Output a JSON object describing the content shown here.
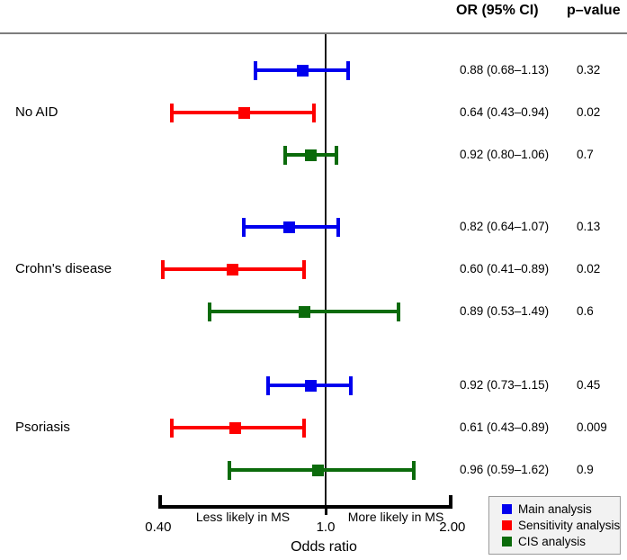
{
  "chart_data": {
    "type": "scatter",
    "variant": "forest-plot",
    "xlabel": "Odds ratio",
    "xscale": "log",
    "xlim": [
      0.4,
      2.0
    ],
    "reference_value": 1.0,
    "grid": false,
    "legend_position": "bottom-right",
    "xticks": [
      {
        "value": 0.4,
        "label": "0.40"
      },
      {
        "value": 1.0,
        "label": "1.0"
      },
      {
        "value": 2.0,
        "label": "2.00"
      }
    ],
    "direction_labels": {
      "left": "Less likely in MS",
      "right": "More likely in MS"
    },
    "columns": {
      "or": "OR (95% CI)",
      "p": "p–value"
    },
    "series": [
      {
        "name": "Main analysis",
        "color": "#0000ee"
      },
      {
        "name": "Sensitivity analysis",
        "color": "#fe0000"
      },
      {
        "name": "CIS analysis",
        "color": "#0b6b0b"
      }
    ],
    "groups": [
      {
        "label": "No AID",
        "rows": [
          {
            "series": "Main analysis",
            "or": 0.88,
            "ci_low": 0.68,
            "ci_high": 1.13,
            "or_text": "0.88 (0.68–1.13)",
            "p": "0.32"
          },
          {
            "series": "Sensitivity analysis",
            "or": 0.64,
            "ci_low": 0.43,
            "ci_high": 0.94,
            "or_text": "0.64 (0.43–0.94)",
            "p": "0.02"
          },
          {
            "series": "CIS analysis",
            "or": 0.92,
            "ci_low": 0.8,
            "ci_high": 1.06,
            "or_text": "0.92 (0.80–1.06)",
            "p": "0.7"
          }
        ]
      },
      {
        "label": "Crohn's disease",
        "rows": [
          {
            "series": "Main analysis",
            "or": 0.82,
            "ci_low": 0.64,
            "ci_high": 1.07,
            "or_text": "0.82 (0.64–1.07)",
            "p": "0.13"
          },
          {
            "series": "Sensitivity analysis",
            "or": 0.6,
            "ci_low": 0.41,
            "ci_high": 0.89,
            "or_text": "0.60 (0.41–0.89)",
            "p": "0.02"
          },
          {
            "series": "CIS analysis",
            "or": 0.89,
            "ci_low": 0.53,
            "ci_high": 1.49,
            "or_text": "0.89 (0.53–1.49)",
            "p": "0.6"
          }
        ]
      },
      {
        "label": "Psoriasis",
        "rows": [
          {
            "series": "Main analysis",
            "or": 0.92,
            "ci_low": 0.73,
            "ci_high": 1.15,
            "or_text": "0.92 (0.73–1.15)",
            "p": "0.45"
          },
          {
            "series": "Sensitivity analysis",
            "or": 0.61,
            "ci_low": 0.43,
            "ci_high": 0.89,
            "or_text": "0.61 (0.43–0.89)",
            "p": "0.009"
          },
          {
            "series": "CIS analysis",
            "or": 0.96,
            "ci_low": 0.59,
            "ci_high": 1.62,
            "or_text": "0.96 (0.59–1.62)",
            "p": "0.9"
          }
        ]
      }
    ]
  },
  "colors": {
    "reference_line": "#1a1a1a",
    "header_separator": "#7d7d7d",
    "axis": "#000000",
    "legend_background": "#f2f2f2",
    "legend_border": "#9a9a9a"
  }
}
